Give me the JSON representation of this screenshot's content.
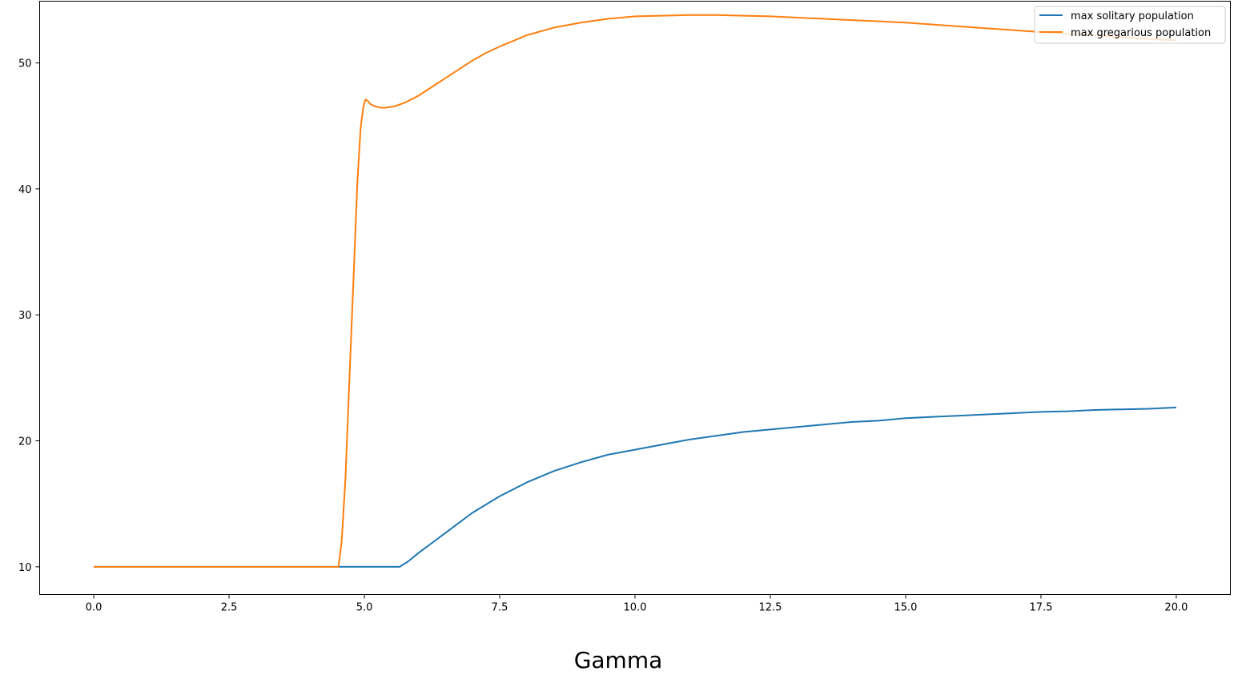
{
  "chart_data": {
    "type": "line",
    "title": "",
    "xlabel": "Gamma",
    "ylabel": "",
    "xlim": [
      -1.0,
      21.0
    ],
    "ylim": [
      7.8,
      54.9
    ],
    "xticks": [
      0.0,
      2.5,
      5.0,
      7.5,
      10.0,
      12.5,
      15.0,
      17.5,
      20.0
    ],
    "xtick_labels": [
      "0.0",
      "2.5",
      "5.0",
      "7.5",
      "10.0",
      "12.5",
      "15.0",
      "17.5",
      "20.0"
    ],
    "yticks": [
      10,
      20,
      30,
      40,
      50
    ],
    "ytick_labels": [
      "10",
      "20",
      "30",
      "40",
      "50"
    ],
    "grid": false,
    "legend_position": "top-right",
    "series": [
      {
        "name": "max solitary population",
        "color": "#1f77b4",
        "x": [
          0.0,
          1.0,
          2.0,
          3.0,
          4.0,
          5.0,
          5.65,
          5.8,
          6.0,
          6.25,
          6.5,
          6.75,
          7.0,
          7.5,
          8.0,
          8.5,
          9.0,
          9.5,
          10.0,
          10.5,
          11.0,
          11.5,
          12.0,
          12.5,
          13.0,
          13.5,
          14.0,
          14.5,
          15.0,
          15.5,
          16.0,
          16.5,
          17.0,
          17.5,
          18.0,
          18.5,
          19.0,
          19.5,
          20.0
        ],
        "y": [
          10.0,
          10.0,
          10.0,
          10.0,
          10.0,
          10.0,
          10.0,
          10.4,
          11.1,
          11.9,
          12.7,
          13.5,
          14.3,
          15.6,
          16.7,
          17.6,
          18.3,
          18.9,
          19.3,
          19.7,
          20.1,
          20.4,
          20.7,
          20.9,
          21.1,
          21.3,
          21.5,
          21.6,
          21.8,
          21.9,
          22.0,
          22.1,
          22.2,
          22.3,
          22.35,
          22.45,
          22.5,
          22.55,
          22.65
        ]
      },
      {
        "name": "max gregarious population",
        "color": "#ff7f0e",
        "x": [
          0.0,
          1.0,
          2.0,
          3.0,
          4.0,
          4.52,
          4.58,
          4.65,
          4.72,
          4.8,
          4.87,
          4.93,
          4.98,
          5.02,
          5.06,
          5.12,
          5.2,
          5.3,
          5.4,
          5.55,
          5.75,
          6.0,
          6.25,
          6.5,
          6.75,
          7.0,
          7.25,
          7.5,
          8.0,
          8.5,
          9.0,
          9.5,
          10.0,
          10.5,
          11.0,
          11.5,
          12.0,
          12.5,
          13.0,
          13.5,
          14.0,
          14.5,
          15.0,
          15.5,
          16.0,
          16.5,
          17.0,
          17.5,
          18.0,
          18.5,
          19.0,
          19.5,
          20.0
        ],
        "y": [
          10.0,
          10.0,
          10.0,
          10.0,
          10.0,
          10.0,
          12.0,
          17.0,
          24.5,
          33.0,
          40.5,
          44.8,
          46.5,
          47.1,
          47.0,
          46.7,
          46.55,
          46.45,
          46.45,
          46.55,
          46.85,
          47.4,
          48.1,
          48.8,
          49.5,
          50.2,
          50.8,
          51.3,
          52.2,
          52.8,
          53.2,
          53.5,
          53.7,
          53.75,
          53.8,
          53.8,
          53.75,
          53.7,
          53.6,
          53.5,
          53.4,
          53.3,
          53.2,
          53.05,
          52.9,
          52.75,
          52.6,
          52.45,
          52.3,
          52.2,
          52.05,
          51.9,
          51.8
        ]
      }
    ]
  }
}
